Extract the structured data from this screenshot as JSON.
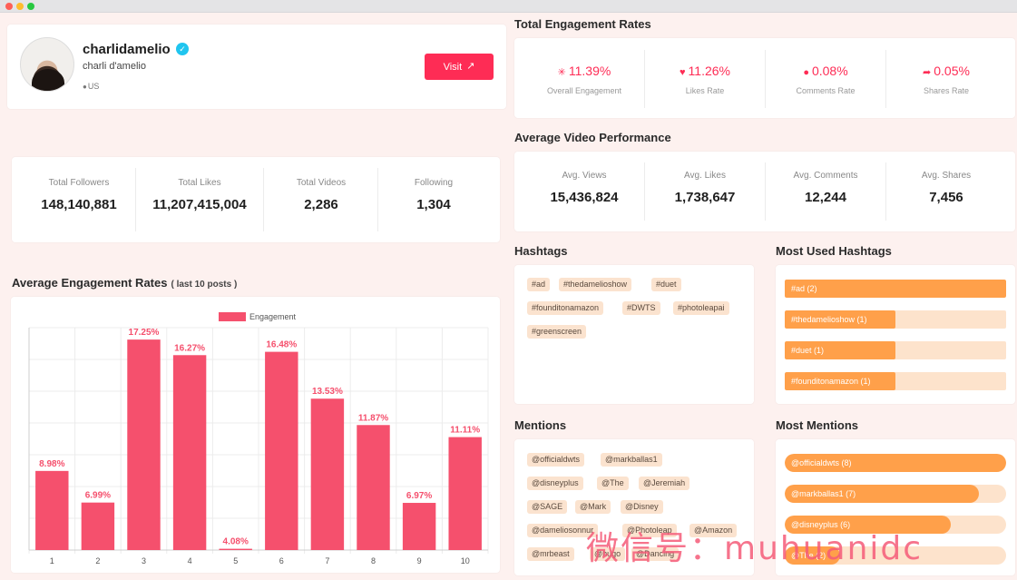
{
  "profile": {
    "username": "charlidamelio",
    "full_name": "charli d'amelio",
    "location": "US",
    "visit_label": "Visit",
    "icons": {
      "verified": "verified-badge-icon",
      "location": "location-pin-icon",
      "external": "external-link-icon"
    }
  },
  "stats": [
    {
      "label": "Total Followers",
      "value": "148,140,881"
    },
    {
      "label": "Total Likes",
      "value": "11,207,415,004"
    },
    {
      "label": "Total Videos",
      "value": "2,286"
    },
    {
      "label": "Following",
      "value": "1,304"
    }
  ],
  "engagement_rates": {
    "title": "Total Engagement Rates",
    "items": [
      {
        "label": "Overall Engagement",
        "value": "11.39%",
        "icon": "sparkle-icon"
      },
      {
        "label": "Likes Rate",
        "value": "11.26%",
        "icon": "heart-icon"
      },
      {
        "label": "Comments Rate",
        "value": "0.08%",
        "icon": "comment-icon"
      },
      {
        "label": "Shares Rate",
        "value": "0.05%",
        "icon": "share-icon"
      }
    ]
  },
  "video_performance": {
    "title": "Average Video Performance",
    "items": [
      {
        "label": "Avg. Views",
        "value": "15,436,824"
      },
      {
        "label": "Avg. Likes",
        "value": "1,738,647"
      },
      {
        "label": "Avg. Comments",
        "value": "12,244"
      },
      {
        "label": "Avg. Shares",
        "value": "7,456"
      }
    ]
  },
  "chart_section": {
    "title": "Average Engagement Rates",
    "subtitle": "( last 10 posts )"
  },
  "chart_data": {
    "type": "bar",
    "categories": [
      "1",
      "2",
      "3",
      "4",
      "5",
      "6",
      "7",
      "8",
      "9",
      "10"
    ],
    "series": [
      {
        "name": "Engagement",
        "values": [
          8.98,
          6.99,
          17.25,
          16.27,
          4.08,
          16.48,
          13.53,
          11.87,
          6.97,
          11.11
        ]
      }
    ],
    "value_labels": [
      "8.98%",
      "6.99%",
      "17.25%",
      "16.27%",
      "4.08%",
      "16.48%",
      "13.53%",
      "11.87%",
      "6.97%",
      "11.11%"
    ],
    "ylim": [
      4,
      18
    ],
    "grid": true,
    "legend": "top-center",
    "color": "#f5506d"
  },
  "hashtags": {
    "title": "Hashtags",
    "tags": [
      "#ad",
      "#thedamelioshow",
      "#duet",
      "#founditonamazon",
      "#DWTS",
      "#photoleapai",
      "#greenscreen"
    ]
  },
  "most_used_hashtags": {
    "title": "Most Used Hashtags",
    "items": [
      {
        "label": "#ad (2)",
        "fraction": 1.0
      },
      {
        "label": "#thedamelioshow (1)",
        "fraction": 0.5
      },
      {
        "label": "#duet (1)",
        "fraction": 0.5
      },
      {
        "label": "#founditonamazon (1)",
        "fraction": 0.5
      }
    ]
  },
  "mentions": {
    "title": "Mentions",
    "tags": [
      "@officialdwts",
      "@markballas1",
      "@disneyplus",
      "@The",
      "@Jeremiah",
      "@SAGE",
      "@Mark",
      "@Disney",
      "@dameliosonnur",
      "@Photoleap",
      "@Amazon",
      "@mrbeast",
      "@hugo",
      "@Dancing"
    ]
  },
  "most_mentions": {
    "title": "Most Mentions",
    "items": [
      {
        "label": "@officialdwts (8)",
        "fraction": 1.0
      },
      {
        "label": "@markballas1 (7)",
        "fraction": 0.875
      },
      {
        "label": "@disneyplus (6)",
        "fraction": 0.75
      },
      {
        "label": "@The (2)",
        "fraction": 0.25
      }
    ]
  },
  "watermark": "微信号：muhuanidc"
}
